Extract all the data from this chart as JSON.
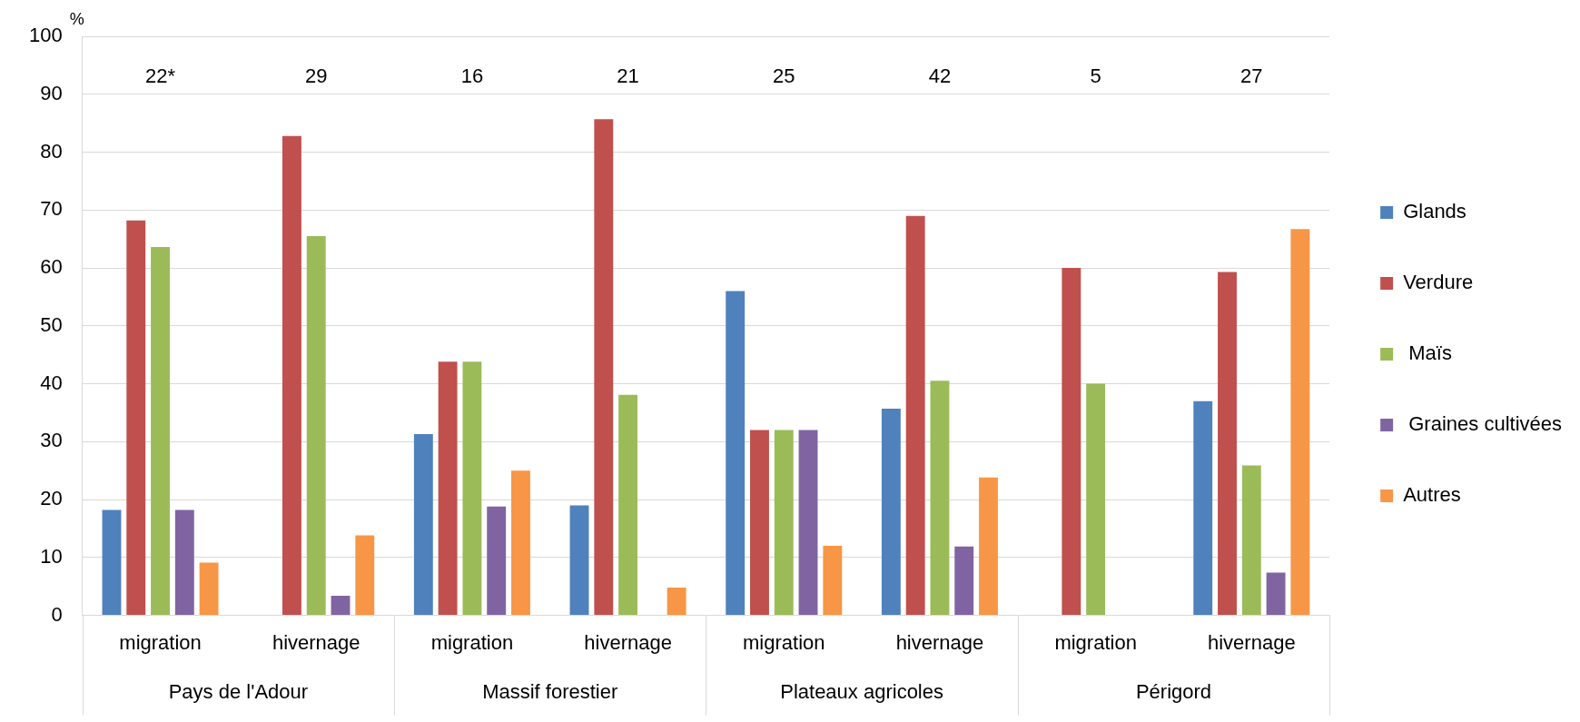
{
  "chart_data": {
    "type": "bar",
    "ylabel": "%",
    "categories": [
      "migration",
      "hivernage",
      "migration",
      "hivernage",
      "migration",
      "hivernage",
      "migration",
      "hivernage"
    ],
    "series": [
      {
        "name": "Glands",
        "color": "#4f81bd",
        "values": [
          18.2,
          0,
          31.3,
          19.0,
          56,
          35.7,
          0,
          37.0
        ]
      },
      {
        "name": "Verdure",
        "color": "#c0504d",
        "values": [
          68.2,
          82.8,
          43.8,
          85.7,
          32,
          69.0,
          60,
          59.3
        ]
      },
      {
        "name": " Maïs",
        "color": "#9bbb59",
        "values": [
          63.6,
          65.5,
          43.8,
          38.1,
          32,
          40.5,
          40,
          25.9
        ]
      },
      {
        "name": " Graines cultivées",
        "color": "#8064a2",
        "values": [
          18.2,
          3.4,
          18.8,
          0,
          32,
          11.9,
          0,
          7.4
        ]
      },
      {
        "name": "Autres",
        "color": "#f79646",
        "values": [
          9.1,
          13.8,
          25,
          4.8,
          12,
          23.8,
          0,
          66.7
        ]
      }
    ],
    "ylim": [
      0,
      100
    ],
    "yticks": [
      0,
      10,
      20,
      30,
      40,
      50,
      60,
      70,
      80,
      90,
      100
    ],
    "grid": "y",
    "legend": "right",
    "annotations": [
      "22*",
      "29",
      "16",
      "21",
      "25",
      "42",
      "5",
      "27",
      "Pays de l'Adour",
      "Massif forestier",
      "Plateaux agricoles",
      "Périgord"
    ]
  }
}
